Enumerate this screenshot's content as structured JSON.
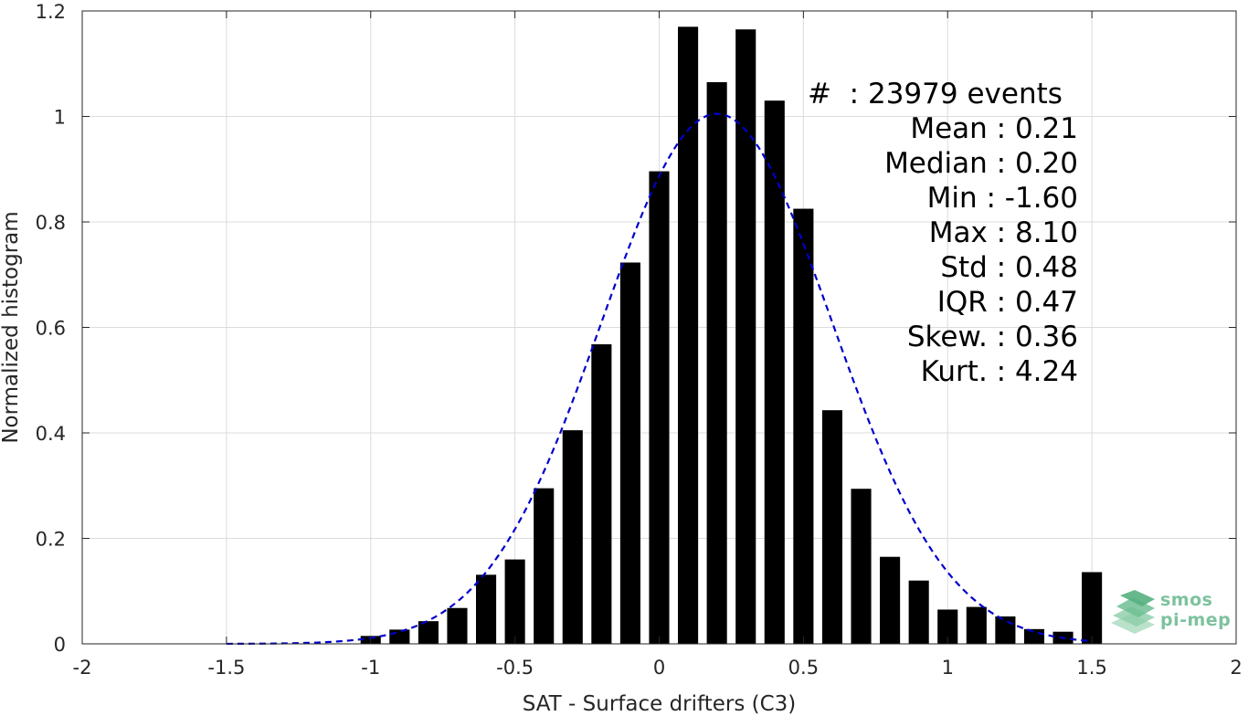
{
  "chart_data": {
    "type": "bar",
    "xlabel": "SAT - Surface drifters (C3)",
    "ylabel": "Normalized histogram",
    "xlim": [
      -2,
      2
    ],
    "ylim": [
      0,
      1.2
    ],
    "xticks": [
      "-2",
      "-1.5",
      "-1",
      "-0.5",
      "0",
      "0.5",
      "1",
      "1.5",
      "2"
    ],
    "yticks": [
      "0",
      "0.2",
      "0.4",
      "0.6",
      "0.8",
      "1",
      "1.2"
    ],
    "grid": true,
    "bar_color": "#000000",
    "fit_color": "#0000cc",
    "x": [
      -1.0,
      -0.9,
      -0.8,
      -0.7,
      -0.6,
      -0.5,
      -0.4,
      -0.3,
      -0.2,
      -0.1,
      0.0,
      0.1,
      0.2,
      0.3,
      0.4,
      0.5,
      0.6,
      0.7,
      0.8,
      0.9,
      1.0,
      1.1,
      1.2,
      1.3,
      1.4,
      1.5
    ],
    "values": [
      0.015,
      0.027,
      0.043,
      0.068,
      0.131,
      0.16,
      0.295,
      0.405,
      0.568,
      0.723,
      0.896,
      1.17,
      1.065,
      1.165,
      1.03,
      0.825,
      0.443,
      0.294,
      0.165,
      0.12,
      0.065,
      0.07,
      0.052,
      0.028,
      0.023,
      0.136
    ],
    "fit": {
      "type": "gaussian-dashed",
      "mean": 0.2,
      "std": 0.4,
      "peak": 1.005,
      "x_range": [
        -1.5,
        1.5
      ]
    },
    "stats": [
      {
        "label": "#  : 23979 events"
      },
      {
        "label": "Mean : 0.21"
      },
      {
        "label": "Median : 0.20"
      },
      {
        "label": "Min : -1.60"
      },
      {
        "label": "Max : 8.10"
      },
      {
        "label": "Std : 0.48"
      },
      {
        "label": "IQR : 0.47"
      },
      {
        "label": "Skew. : 0.36"
      },
      {
        "label": "Kurt. : 4.24"
      }
    ]
  },
  "logo": {
    "line1": "smos",
    "line2": "pi-mep",
    "color": "#7dc29d"
  }
}
